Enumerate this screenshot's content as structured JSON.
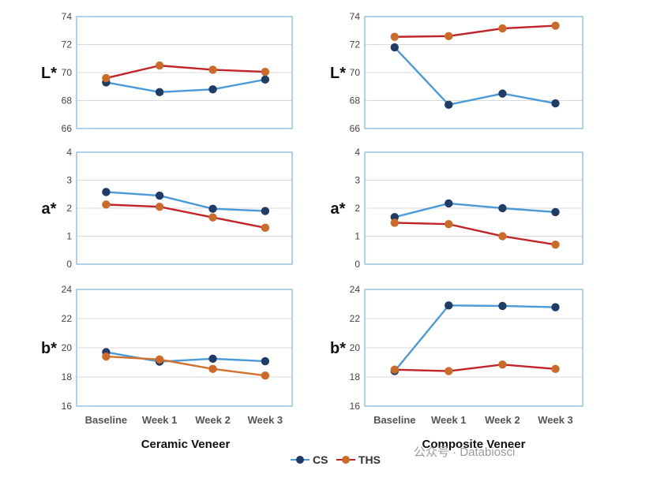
{
  "colors": {
    "cs_line": "#4A9AD9",
    "cs_marker": "#1F3B66",
    "ths_line_ceramic_ab": "#C0232A",
    "ths_line_b_ceramic": "#D0722E",
    "ths_line_composite": "#C0232A",
    "ths_marker": "#CC6A2A",
    "frame": "#7FB3D9",
    "grid": "#D9D9D9"
  },
  "columns": [
    "Ceramic Veneer",
    "Composite Veneer"
  ],
  "categories": [
    "Baseline",
    "Week 1",
    "Week 2",
    "Week 3"
  ],
  "legend": [
    {
      "name": "CS",
      "color": "#1F3B66"
    },
    {
      "name": "THS",
      "color": "#CC6A2A"
    }
  ],
  "watermark": "公众号 · Databiosci",
  "chart_data": [
    {
      "type": "line",
      "panel": "Ceramic Veneer L*",
      "ylabel": "L*",
      "ylim": [
        66,
        74
      ],
      "yticks": [
        "66",
        "68",
        "70",
        "72",
        "74"
      ],
      "categories": [
        "Baseline",
        "Week 1",
        "Week 2",
        "Week 3"
      ],
      "series": [
        {
          "name": "CS",
          "values": [
            69.3,
            68.6,
            68.8,
            69.5
          ]
        },
        {
          "name": "THS",
          "values": [
            69.6,
            70.5,
            70.2,
            70.05
          ]
        }
      ]
    },
    {
      "type": "line",
      "panel": "Composite Veneer L*",
      "ylabel": "L*",
      "ylim": [
        66,
        74
      ],
      "yticks": [
        "66",
        "68",
        "70",
        "72",
        "74"
      ],
      "categories": [
        "Baseline",
        "Week 1",
        "Week 2",
        "Week 3"
      ],
      "series": [
        {
          "name": "CS",
          "values": [
            71.8,
            67.7,
            68.5,
            67.8
          ]
        },
        {
          "name": "THS",
          "values": [
            72.55,
            72.6,
            73.15,
            73.35
          ]
        }
      ]
    },
    {
      "type": "line",
      "panel": "Ceramic Veneer a*",
      "ylabel": "a*",
      "ylim": [
        0,
        4
      ],
      "yticks": [
        "0",
        "1",
        "2",
        "3",
        "4"
      ],
      "categories": [
        "Baseline",
        "Week 1",
        "Week 2",
        "Week 3"
      ],
      "series": [
        {
          "name": "CS",
          "values": [
            2.58,
            2.45,
            1.98,
            1.9
          ]
        },
        {
          "name": "THS",
          "values": [
            2.13,
            2.05,
            1.67,
            1.3
          ]
        }
      ]
    },
    {
      "type": "line",
      "panel": "Composite Veneer a*",
      "ylabel": "a*",
      "ylim": [
        0,
        4
      ],
      "yticks": [
        "0",
        "1",
        "2",
        "3",
        "4"
      ],
      "categories": [
        "Baseline",
        "Week 1",
        "Week 2",
        "Week 3"
      ],
      "series": [
        {
          "name": "CS",
          "values": [
            1.68,
            2.17,
            2.0,
            1.86
          ]
        },
        {
          "name": "THS",
          "values": [
            1.48,
            1.43,
            1.0,
            0.7
          ]
        }
      ]
    },
    {
      "type": "line",
      "panel": "Ceramic Veneer b*",
      "ylabel": "b*",
      "ylim": [
        16,
        24
      ],
      "yticks": [
        "16",
        "18",
        "20",
        "22",
        "24"
      ],
      "categories": [
        "Baseline",
        "Week 1",
        "Week 2",
        "Week 3"
      ],
      "series": [
        {
          "name": "CS",
          "values": [
            19.7,
            19.05,
            19.25,
            19.08
          ]
        },
        {
          "name": "THS",
          "values": [
            19.4,
            19.2,
            18.55,
            18.1
          ]
        }
      ]
    },
    {
      "type": "line",
      "panel": "Composite Veneer b*",
      "ylabel": "b*",
      "ylim": [
        16,
        24
      ],
      "yticks": [
        "16",
        "18",
        "20",
        "22",
        "24"
      ],
      "categories": [
        "Baseline",
        "Week 1",
        "Week 2",
        "Week 3"
      ],
      "series": [
        {
          "name": "CS",
          "values": [
            18.4,
            22.9,
            22.87,
            22.78
          ]
        },
        {
          "name": "THS",
          "values": [
            18.5,
            18.4,
            18.85,
            18.55
          ]
        }
      ]
    }
  ]
}
